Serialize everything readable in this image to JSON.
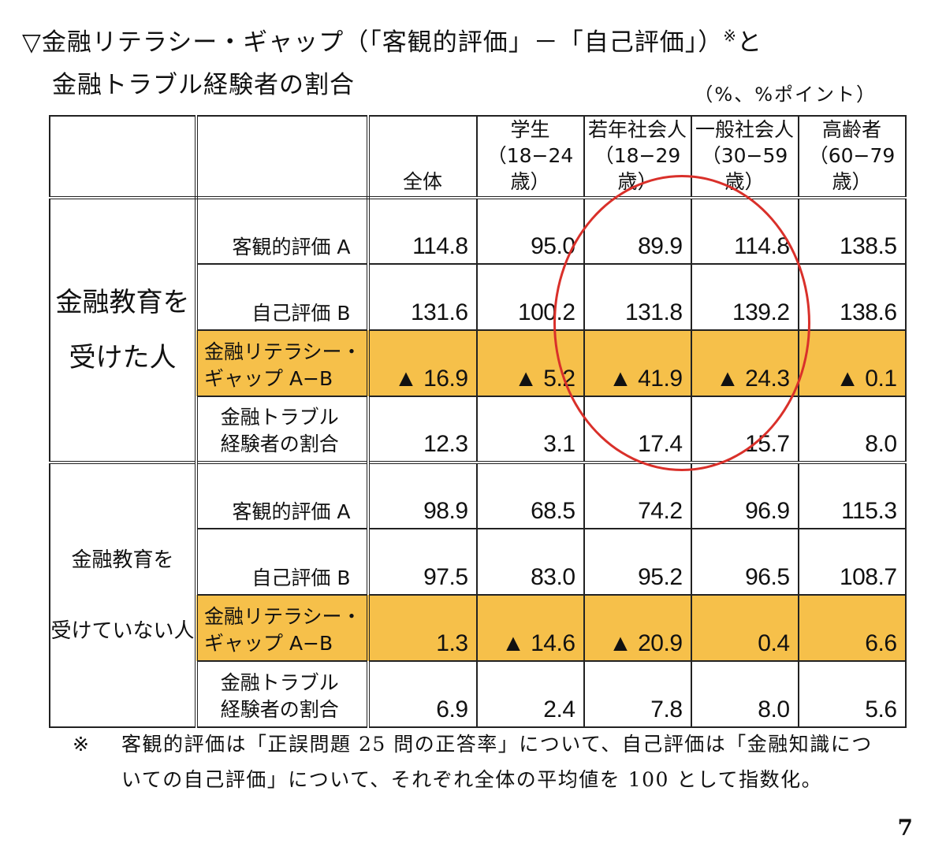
{
  "title": {
    "line1": "▽金融リテラシー・ギャップ（「客観的評価」－「自己評価」）",
    "line1_mark": "※",
    "line1_end": "と",
    "line2": "金融トラブル経験者の割合"
  },
  "unit": "（%、%ポイント）",
  "table": {
    "columns": [
      {
        "line1": "",
        "line2": "全体"
      },
      {
        "line1": "学生",
        "line2": "（18−24歳）"
      },
      {
        "line1": "若年社会人",
        "line2": "（18−29歳）"
      },
      {
        "line1": "一般社会人",
        "line2": "（30−59歳）"
      },
      {
        "line1": "高齢者",
        "line2": "（60−79歳）"
      }
    ],
    "groups": [
      {
        "label_line1": "金融教育を",
        "label_line2": "受けた人",
        "rows": [
          {
            "label1": "客観的評価 A",
            "label2": "",
            "values": [
              "114.8",
              "95.0",
              "89.9",
              "114.8",
              "138.5"
            ]
          },
          {
            "label1": "自己評価 B",
            "label2": "",
            "values": [
              "131.6",
              "100.2",
              "131.8",
              "139.2",
              "138.6"
            ]
          },
          {
            "label1": "金融リテラシー・",
            "label2": "ギャップ A−B",
            "values": [
              "▲ 16.9",
              "▲ 5.2",
              "▲ 41.9",
              "▲ 24.3",
              "▲ 0.1"
            ]
          },
          {
            "label1": "金融トラブル",
            "label2": "経験者の割合",
            "values": [
              "12.3",
              "3.1",
              "17.4",
              "15.7",
              "8.0"
            ]
          }
        ]
      },
      {
        "label_line1": "金融教育を",
        "label_line2": "受けていない人",
        "rows": [
          {
            "label1": "客観的評価 A",
            "label2": "",
            "values": [
              "98.9",
              "68.5",
              "74.2",
              "96.9",
              "115.3"
            ]
          },
          {
            "label1": "自己評価 B",
            "label2": "",
            "values": [
              "97.5",
              "83.0",
              "95.2",
              "96.5",
              "108.7"
            ]
          },
          {
            "label1": "金融リテラシー・",
            "label2": "ギャップ A−B",
            "values": [
              "1.3",
              "▲ 14.6",
              "▲ 20.9",
              "0.4",
              "6.6"
            ]
          },
          {
            "label1": "金融トラブル",
            "label2": "経験者の割合",
            "values": [
              "6.9",
              "2.4",
              "7.8",
              "8.0",
              "5.6"
            ]
          }
        ]
      }
    ]
  },
  "highlight_color": "#f6c04a",
  "circle_color": "#d9302a",
  "footnote": {
    "mark": "※",
    "text": "客観的評価は「正誤問題 25 問の正答率」について、自己評価は「金融知識についての自己評価」について、それぞれ全体の平均値を 100 として指数化。"
  },
  "page_number": "7"
}
